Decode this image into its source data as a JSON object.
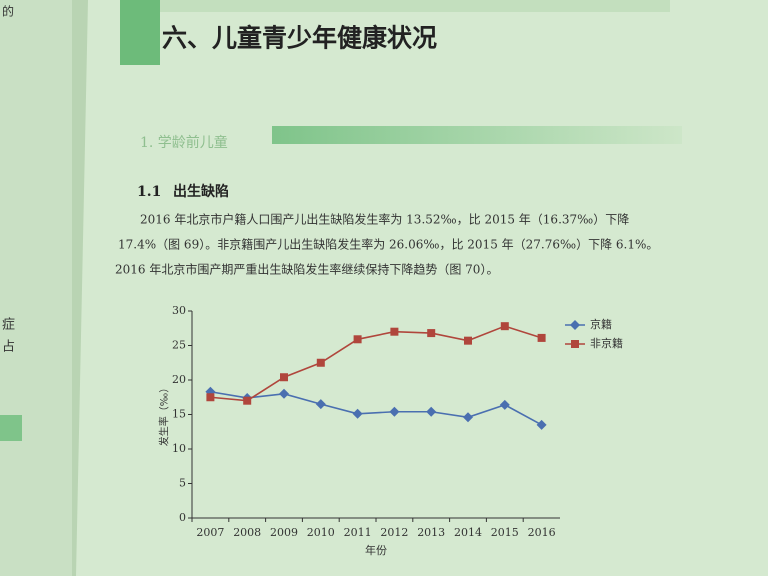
{
  "margin_fragments": [
    "的",
    "症",
    "占"
  ],
  "header": {
    "title": "六、儿童青少年健康状况"
  },
  "section": "1. 学龄前儿童",
  "subsection": {
    "number": "1.1",
    "title": "出生缺陷"
  },
  "paragraph": [
    "2016 年北京市户籍人口围产儿出生缺陷发生率为 13.52‰，比 2015 年（16.37‰）下降",
    "17.4%（图 69）。非京籍围产儿出生缺陷发生率为 26.06‰，比 2015 年（27.76‰）下降 6.1%。",
    "2016 年北京市围产期严重出生缺陷发生率继续保持下降趋势（图 70）。"
  ],
  "chart_data": {
    "type": "line",
    "categories": [
      "2007",
      "2008",
      "2009",
      "2010",
      "2011",
      "2012",
      "2013",
      "2014",
      "2015",
      "2016"
    ],
    "series": [
      {
        "name": "京籍",
        "color": "#4a6fb0",
        "marker": "diamond",
        "values": [
          18.3,
          17.4,
          18.0,
          16.5,
          15.1,
          15.4,
          15.4,
          14.6,
          16.4,
          13.5
        ]
      },
      {
        "name": "非京籍",
        "color": "#b0463c",
        "marker": "square",
        "values": [
          17.5,
          17.0,
          20.4,
          22.5,
          25.9,
          27.0,
          26.8,
          25.7,
          27.8,
          26.1
        ]
      }
    ],
    "ylim": [
      0,
      30
    ],
    "yticks": [
      0,
      5,
      10,
      15,
      20,
      25,
      30
    ],
    "y_label": "发生率（‰）",
    "x_label": "年份",
    "legend": "upper right"
  }
}
